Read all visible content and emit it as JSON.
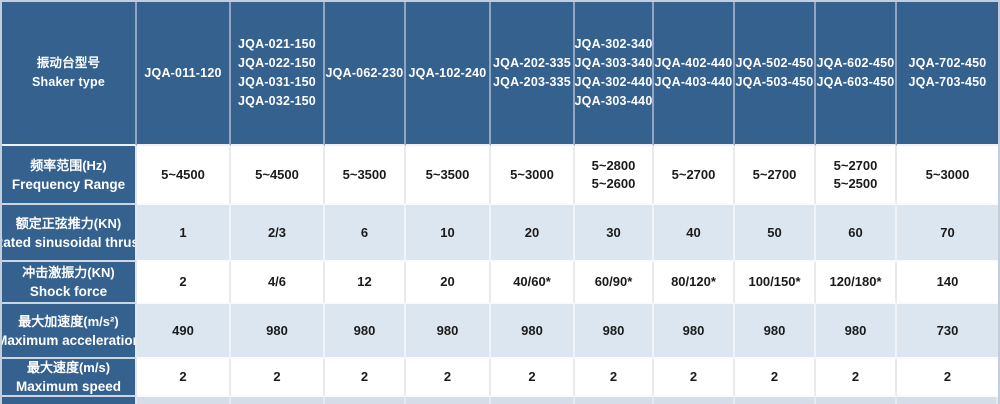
{
  "table": {
    "header": {
      "label_zh": "振动台型号",
      "label_en": "Shaker type",
      "columns": [
        {
          "models": [
            "JQA-011-120"
          ]
        },
        {
          "models": [
            "JQA-021-150",
            "JQA-022-150",
            "JQA-031-150",
            "JQA-032-150"
          ]
        },
        {
          "models": [
            "JQA-062-230"
          ]
        },
        {
          "models": [
            "JQA-102-240"
          ]
        },
        {
          "models": [
            "JQA-202-335",
            "JQA-203-335"
          ]
        },
        {
          "models": [
            "JQA-302-340",
            "JQA-303-340",
            "JQA-302-440",
            "JQA-303-440"
          ]
        },
        {
          "models": [
            "JQA-402-440",
            "JQA-403-440"
          ]
        },
        {
          "models": [
            "JQA-502-450",
            "JQA-503-450"
          ]
        },
        {
          "models": [
            "JQA-602-450",
            "JQA-603-450"
          ]
        },
        {
          "models": [
            "JQA-702-450",
            "JQA-703-450"
          ]
        }
      ]
    },
    "rows": [
      {
        "id": "frequency-range",
        "label_zh": "频率范围(Hz)",
        "label_en": "Frequency Range",
        "shade": "white",
        "row_class": "row-freq",
        "values": [
          [
            "5~4500"
          ],
          [
            "5~4500"
          ],
          [
            "5~3500"
          ],
          [
            "5~3500"
          ],
          [
            "5~3000"
          ],
          [
            "5~2800",
            "5~2600"
          ],
          [
            "5~2700"
          ],
          [
            "5~2700"
          ],
          [
            "5~2700",
            "5~2500"
          ],
          [
            "5~3000"
          ]
        ]
      },
      {
        "id": "rated-sinusoidal-thrust",
        "label_zh": "额定正弦推力(KN)",
        "label_en": "Rated sinusoidal thrust",
        "shade": "blue",
        "row_class": "row-thrust",
        "values": [
          [
            "1"
          ],
          [
            "2/3"
          ],
          [
            "6"
          ],
          [
            "10"
          ],
          [
            "20"
          ],
          [
            "30"
          ],
          [
            "40"
          ],
          [
            "50"
          ],
          [
            "60"
          ],
          [
            "70"
          ]
        ]
      },
      {
        "id": "shock-force",
        "label_zh": "冲击激振力(KN)",
        "label_en": "Shock force",
        "shade": "white",
        "row_class": "row-shock",
        "values": [
          [
            "2"
          ],
          [
            "4/6"
          ],
          [
            "12"
          ],
          [
            "20"
          ],
          [
            "40/60*"
          ],
          [
            "60/90*"
          ],
          [
            "80/120*"
          ],
          [
            "100/150*"
          ],
          [
            "120/180*"
          ],
          [
            "140"
          ]
        ]
      },
      {
        "id": "maximum-acceleration",
        "label_zh": "最大加速度(m/s²)",
        "label_en": "Maximum acceleration",
        "shade": "blue",
        "row_class": "row-accel",
        "values": [
          [
            "490"
          ],
          [
            "980"
          ],
          [
            "980"
          ],
          [
            "980"
          ],
          [
            "980"
          ],
          [
            "980"
          ],
          [
            "980"
          ],
          [
            "980"
          ],
          [
            "980"
          ],
          [
            "730"
          ]
        ]
      },
      {
        "id": "maximum-speed",
        "label_zh": "最大速度(m/s)",
        "label_en": "Maximum speed",
        "shade": "white",
        "row_class": "row-speed",
        "values": [
          [
            "2"
          ],
          [
            "2"
          ],
          [
            "2"
          ],
          [
            "2"
          ],
          [
            "2"
          ],
          [
            "2"
          ],
          [
            "2"
          ],
          [
            "2"
          ],
          [
            "2"
          ],
          [
            "2"
          ]
        ]
      }
    ],
    "colors": {
      "header_blue": "#35618f",
      "row_light_blue": "#dce6f1",
      "row_white": "#ffffff",
      "outer_border": "#c3cddc",
      "header_divider": "#93a5c1",
      "text_light": "#ffffff",
      "text_dark": "#1b1b1b"
    }
  }
}
